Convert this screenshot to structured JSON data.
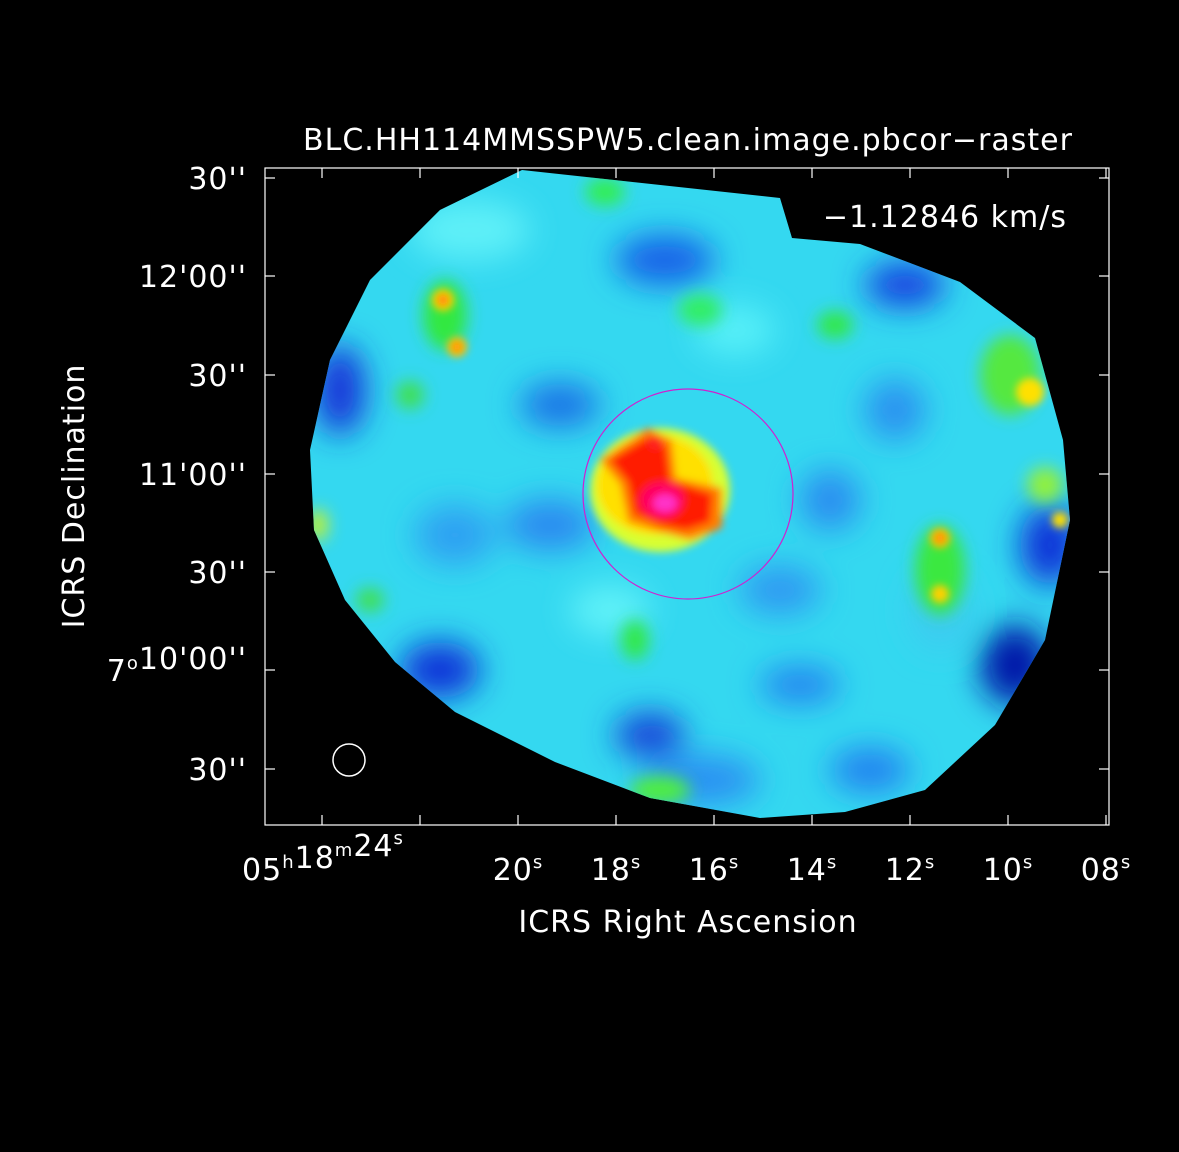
{
  "image_title": "BLC.HH114MMSSPW5.clean.image.pbcor−raster",
  "velocity_label": "−1.12846 km/s",
  "axes": {
    "x_label": "ICRS Right Ascension",
    "y_label": "ICRS Declination",
    "x_ticks": [
      {
        "ra_sec": 24,
        "parts": [
          {
            "t": "05"
          },
          {
            "t": "h",
            "sup": true
          },
          {
            "t": "18"
          },
          {
            "t": "m",
            "sup": true
          },
          {
            "t": "24"
          },
          {
            "t": "s",
            "sup": true
          }
        ]
      },
      {
        "ra_sec": 20,
        "parts": [
          {
            "t": "20"
          },
          {
            "t": "s",
            "sup": true
          }
        ]
      },
      {
        "ra_sec": 18,
        "parts": [
          {
            "t": "18"
          },
          {
            "t": "s",
            "sup": true
          }
        ]
      },
      {
        "ra_sec": 16,
        "parts": [
          {
            "t": "16"
          },
          {
            "t": "s",
            "sup": true
          }
        ]
      },
      {
        "ra_sec": 14,
        "parts": [
          {
            "t": "14"
          },
          {
            "t": "s",
            "sup": true
          }
        ]
      },
      {
        "ra_sec": 12,
        "parts": [
          {
            "t": "12"
          },
          {
            "t": "s",
            "sup": true
          }
        ]
      },
      {
        "ra_sec": 10,
        "parts": [
          {
            "t": "10"
          },
          {
            "t": "s",
            "sup": true
          }
        ]
      },
      {
        "ra_sec": 8,
        "parts": [
          {
            "t": "08"
          },
          {
            "t": "s",
            "sup": true
          }
        ]
      }
    ],
    "x_minor_ticks_sec": [
      22
    ],
    "y_ticks": [
      {
        "dec_arcsec": 630,
        "parts": [
          {
            "t": "30''"
          }
        ]
      },
      {
        "dec_arcsec": 720,
        "parts": [
          {
            "t": "12'00''"
          }
        ]
      },
      {
        "dec_arcsec": 690,
        "parts": [
          {
            "t": "30''"
          }
        ]
      },
      {
        "dec_arcsec": 660,
        "parts": [
          {
            "t": "11'00''"
          }
        ]
      },
      {
        "dec_arcsec": 630,
        "parts": [
          {
            "t": "30''"
          }
        ]
      },
      {
        "dec_arcsec": 600,
        "parts": [
          {
            "t": "7"
          },
          {
            "t": "o",
            "sup": true
          },
          {
            "t": "10'00''"
          }
        ]
      },
      {
        "dec_arcsec": 570,
        "parts": [
          {
            "t": "30''"
          }
        ]
      }
    ]
  },
  "colors": {
    "background": "#000000",
    "axes": "#ffffff",
    "text": "#ffffff",
    "contour_circle": "#d020d0",
    "colormap": [
      "#0000ff",
      "#00aaff",
      "#00ffff",
      "#00ff00",
      "#ffff00",
      "#ff0000",
      "#ff00ff"
    ]
  },
  "overlays": {
    "primary_beam_circle": "magenta circle centered on the central source",
    "beam_ellipse": "white restoring beam marker, lower left"
  }
}
